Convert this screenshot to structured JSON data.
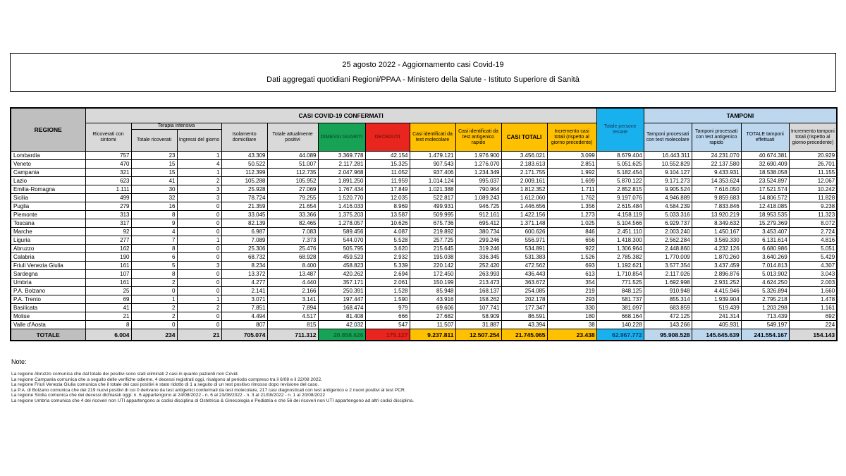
{
  "title": {
    "line1": "25 agosto 2022 - Aggiornamento casi Covid-19",
    "line2": "Dati aggregati quotidiani Regioni/PPAA - Ministero della Salute - Istituto Superiore di Sanità"
  },
  "colors": {
    "green": "#16A355",
    "red": "#E8251F",
    "yellow": "#FFC000",
    "cyan": "#19B1ED",
    "light_blue": "#BDD7EE",
    "gray_dark": "#BFBFBF",
    "gray_light": "#D9D9D9"
  },
  "table": {
    "header": {
      "regione": "REGIONE",
      "casi_group": "CASI COVID-19 CONFERMATI",
      "tamponi_group": "TAMPONI",
      "ricoverati": "Ricoverati con sintomi",
      "terapia_intensiva": "Terapia intensiva",
      "ti_totale": "Totale ricoverati",
      "ti_ingressi": "Ingressi del giorno",
      "isolamento": "Isolamento domiciliare",
      "attualmente_positivi": "Totale attualmente positivi",
      "dimessi": "DIMESSI GUARITI",
      "deceduti": "DECEDUTI",
      "casi_molecolare": "Casi identificati da test molecolare",
      "casi_antigenico": "Casi identificati da test antigenico rapido",
      "casi_totali": "CASI TOTALI",
      "incremento_casi": "Incremento casi totali (rispetto al giorno precedente)",
      "persone_testate": "Totale persone testate",
      "tamponi_molecolare": "Tamponi processati con test molecolare",
      "tamponi_antigenico": "Tamponi processati con test antigenico rapido",
      "tamponi_totale": "TOTALE tamponi effettuati",
      "incremento_tamponi": "Incremento tamponi totali (rispetto al giorno precedente)"
    },
    "regions": [
      {
        "name": "Lombardia",
        "values": [
          "757",
          "23",
          "1",
          "43.309",
          "44.089",
          "3.369.778",
          "42.154",
          "1.479.121",
          "1.976.900",
          "3.456.021",
          "3.099",
          "8.679.404",
          "16.443.311",
          "24.231.070",
          "40.674.381",
          "20.929"
        ]
      },
      {
        "name": "Veneto",
        "values": [
          "470",
          "15",
          "4",
          "50.522",
          "51.007",
          "2.117.281",
          "15.325",
          "907.543",
          "1.276.070",
          "2.183.613",
          "2.851",
          "5.051.625",
          "10.552.829",
          "22.137.580",
          "32.690.409",
          "26.701"
        ]
      },
      {
        "name": "Campania",
        "values": [
          "321",
          "15",
          "1",
          "112.399",
          "112.735",
          "2.047.968",
          "11.052",
          "937.406",
          "1.234.349",
          "2.171.755",
          "1.992",
          "5.182.454",
          "9.104.127",
          "9.433.931",
          "18.538.058",
          "11.155"
        ]
      },
      {
        "name": "Lazio",
        "values": [
          "623",
          "41",
          "2",
          "105.288",
          "105.952",
          "1.891.250",
          "11.959",
          "1.014.124",
          "995.037",
          "2.009.161",
          "1.699",
          "5.870.122",
          "9.171.273",
          "14.353.624",
          "23.524.897",
          "12.067"
        ]
      },
      {
        "name": "Emilia-Romagna",
        "values": [
          "1.111",
          "30",
          "3",
          "25.928",
          "27.069",
          "1.767.434",
          "17.849",
          "1.021.388",
          "790.964",
          "1.812.352",
          "1.711",
          "2.852.815",
          "9.905.524",
          "7.616.050",
          "17.521.574",
          "10.242"
        ]
      },
      {
        "name": "Sicilia",
        "values": [
          "499",
          "32",
          "3",
          "78.724",
          "79.255",
          "1.520.770",
          "12.035",
          "522.817",
          "1.089.243",
          "1.612.060",
          "1.762",
          "9.197.076",
          "4.946.889",
          "9.859.683",
          "14.806.572",
          "11.828"
        ]
      },
      {
        "name": "Puglia",
        "values": [
          "279",
          "16",
          "0",
          "21.359",
          "21.654",
          "1.416.033",
          "8.969",
          "499.931",
          "946.725",
          "1.446.656",
          "1.356",
          "2.615.484",
          "4.584.239",
          "7.833.846",
          "12.418.085",
          "9.238"
        ]
      },
      {
        "name": "Piemonte",
        "values": [
          "313",
          "8",
          "0",
          "33.045",
          "33.366",
          "1.375.203",
          "13.587",
          "509.995",
          "912.161",
          "1.422.156",
          "1.273",
          "4.158.119",
          "5.033.316",
          "13.920.219",
          "18.953.535",
          "11.323"
        ]
      },
      {
        "name": "Toscana",
        "values": [
          "317",
          "9",
          "0",
          "82.139",
          "82.465",
          "1.278.057",
          "10.626",
          "675.736",
          "695.412",
          "1.371.148",
          "1.025",
          "5.104.566",
          "6.929.737",
          "8.349.632",
          "15.279.369",
          "8.072"
        ]
      },
      {
        "name": "Marche",
        "values": [
          "92",
          "4",
          "0",
          "6.987",
          "7.083",
          "589.456",
          "4.087",
          "219.892",
          "380.734",
          "600.626",
          "846",
          "2.451.110",
          "2.003.240",
          "1.450.167",
          "3.453.407",
          "2.724"
        ]
      },
      {
        "name": "Liguria",
        "values": [
          "277",
          "7",
          "1",
          "7.089",
          "7.373",
          "544.070",
          "5.528",
          "257.725",
          "299.246",
          "556.971",
          "656",
          "1.418.300",
          "2.562.284",
          "3.569.330",
          "6.131.614",
          "4.816"
        ]
      },
      {
        "name": "Abruzzo",
        "values": [
          "162",
          "8",
          "0",
          "25.306",
          "25.476",
          "505.795",
          "3.620",
          "215.645",
          "319.246",
          "534.891",
          "922",
          "1.306.964",
          "2.448.860",
          "4.232.126",
          "6.680.986",
          "5.051"
        ]
      },
      {
        "name": "Calabria",
        "values": [
          "190",
          "6",
          "0",
          "68.732",
          "68.928",
          "459.523",
          "2.932",
          "195.038",
          "336.345",
          "531.383",
          "1.526",
          "2.785.382",
          "1.770.009",
          "1.870.260",
          "3.640.269",
          "5.429"
        ]
      },
      {
        "name": "Friuli Venezia Giulia",
        "values": [
          "161",
          "5",
          "3",
          "8.234",
          "8.400",
          "458.823",
          "5.339",
          "220.142",
          "252.420",
          "472.562",
          "693",
          "1.192.621",
          "3.577.354",
          "3.437.459",
          "7.014.813",
          "4.307"
        ]
      },
      {
        "name": "Sardegna",
        "values": [
          "107",
          "8",
          "0",
          "13.372",
          "13.487",
          "420.262",
          "2.694",
          "172.450",
          "263.993",
          "436.443",
          "613",
          "1.710.854",
          "2.117.026",
          "2.896.876",
          "5.013.902",
          "3.043"
        ]
      },
      {
        "name": "Umbria",
        "values": [
          "161",
          "2",
          "0",
          "4.277",
          "4.440",
          "357.171",
          "2.061",
          "150.199",
          "213.473",
          "363.672",
          "354",
          "771.525",
          "1.692.998",
          "2.931.252",
          "4.624.250",
          "2.003"
        ]
      },
      {
        "name": "P.A. Bolzano",
        "values": [
          "25",
          "0",
          "0",
          "2.141",
          "2.166",
          "250.391",
          "1.528",
          "85.948",
          "168.137",
          "254.085",
          "219",
          "848.125",
          "910.948",
          "4.415.946",
          "5.326.894",
          "1.660"
        ]
      },
      {
        "name": "P.A. Trento",
        "values": [
          "69",
          "1",
          "1",
          "3.071",
          "3.141",
          "197.447",
          "1.590",
          "43.916",
          "158.262",
          "202.178",
          "293",
          "581.737",
          "855.314",
          "1.939.904",
          "2.795.218",
          "1.478"
        ]
      },
      {
        "name": "Basilicata",
        "values": [
          "41",
          "2",
          "2",
          "7.851",
          "7.894",
          "168.474",
          "979",
          "69.606",
          "107.741",
          "177.347",
          "330",
          "381.097",
          "683.859",
          "519.439",
          "1.203.298",
          "1.161"
        ]
      },
      {
        "name": "Molise",
        "values": [
          "21",
          "2",
          "0",
          "4.494",
          "4.517",
          "81.408",
          "666",
          "27.682",
          "58.909",
          "86.591",
          "180",
          "668.164",
          "472.125",
          "241.314",
          "713.439",
          "692"
        ]
      },
      {
        "name": "Valle d'Aosta",
        "values": [
          "8",
          "0",
          "0",
          "807",
          "815",
          "42.032",
          "547",
          "11.507",
          "31.887",
          "43.394",
          "38",
          "140.228",
          "143.266",
          "405.931",
          "549.197",
          "224"
        ]
      }
    ],
    "totals": {
      "label": "TOTALE",
      "values": [
        "6.004",
        "234",
        "21",
        "705.074",
        "711.312",
        "20.858.626",
        "175.127",
        "9.237.811",
        "12.507.254",
        "21.745.065",
        "23.438",
        "62.967.772",
        "95.908.528",
        "145.645.639",
        "241.554.167",
        "154.143"
      ]
    }
  },
  "notes": {
    "label": "Note:",
    "items": [
      "La regione Abruzzo comunica che dal totale dei positivi sono stati eliminati 2 casi in quanto pazienti non Covid.",
      "La regione Campania comunica che a seguito delle verifiche odierne, 4 decessi registrati oggi, risalgono al periodo compreso tra il 6/08 e il 22/08 2022.",
      "La regione Friuli Venezia Giulia comunica che il totale dei casi positivi è stato ridotto di 1 a seguito di un test positivo rimosso dopo revisione del caso.",
      "La P.A. di Bolzano comunica che dei 219 nuovi positivi di cui 0 derivano da test antigenici confermati da test molecolare, 217 casi diagnosticati con test antigenico e 2 nuovi positivi al test PCR.",
      "La regione Sicilia comunica che dei decessi dichiarati oggi: n. 6 appartengono al 24/08/2022 - n. 6 al 23/08/2022 - n. 3 al 21/08/2022 - n. 1 al 20/08/2022",
      "La regione Umbria comunica che 4 dei ricoveri non UTI appartengono ai codici disciplina di Ostetricia & Ginecologia e Pediatria e che 56 dei ricoveri non UTI appartengono ad altri codici disciplina."
    ]
  }
}
